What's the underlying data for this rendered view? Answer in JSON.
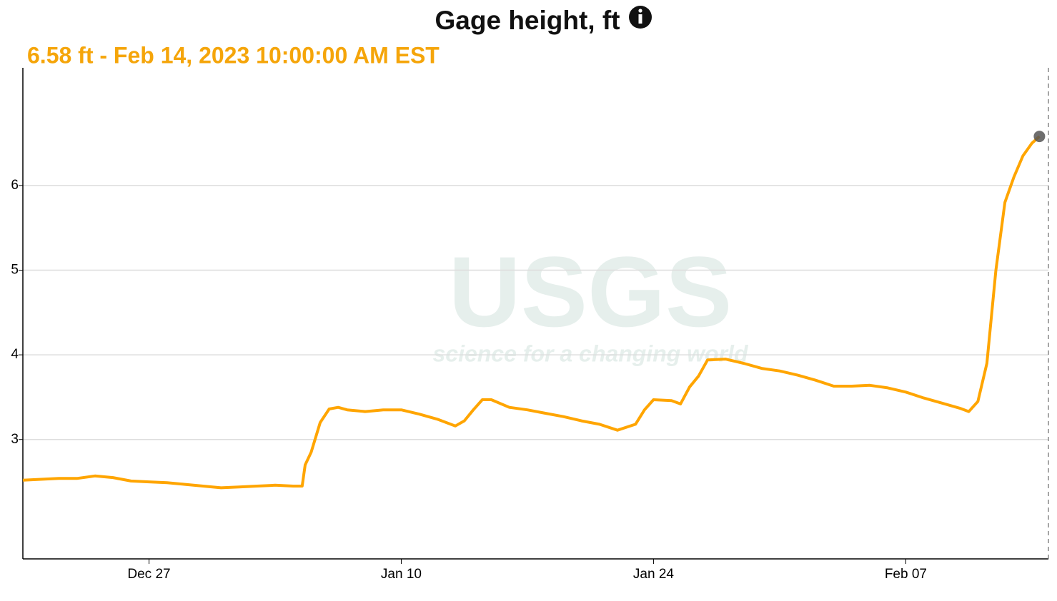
{
  "chart_data": {
    "type": "line",
    "title": "Gage height, ft",
    "subtitle": "6.58 ft - Feb 14, 2023 10:00:00 AM EST",
    "watermark": {
      "logo": "USGS",
      "tagline": "science for a changing world"
    },
    "x": [
      "2022-12-20T00:00",
      "2022-12-21T00:00",
      "2022-12-22T00:00",
      "2022-12-23T00:00",
      "2022-12-24T00:00",
      "2022-12-25T00:00",
      "2022-12-26T00:00",
      "2022-12-27T00:00",
      "2022-12-28T00:00",
      "2022-12-29T00:00",
      "2022-12-30T00:00",
      "2022-12-31T00:00",
      "2023-01-01T00:00",
      "2023-01-02T00:00",
      "2023-01-03T00:00",
      "2023-01-04T00:00",
      "2023-01-04T12:00",
      "2023-01-04T16:00",
      "2023-01-05T00:00",
      "2023-01-05T12:00",
      "2023-01-06T00:00",
      "2023-01-06T12:00",
      "2023-01-07T00:00",
      "2023-01-08T00:00",
      "2023-01-09T00:00",
      "2023-01-10T00:00",
      "2023-01-11T00:00",
      "2023-01-12T00:00",
      "2023-01-13T00:00",
      "2023-01-13T12:00",
      "2023-01-14T00:00",
      "2023-01-14T12:00",
      "2023-01-15T00:00",
      "2023-01-16T00:00",
      "2023-01-17T00:00",
      "2023-01-18T00:00",
      "2023-01-19T00:00",
      "2023-01-20T00:00",
      "2023-01-21T00:00",
      "2023-01-22T00:00",
      "2023-01-23T00:00",
      "2023-01-23T12:00",
      "2023-01-24T00:00",
      "2023-01-25T00:00",
      "2023-01-25T12:00",
      "2023-01-26T00:00",
      "2023-01-26T12:00",
      "2023-01-27T00:00",
      "2023-01-28T00:00",
      "2023-01-29T00:00",
      "2023-01-30T00:00",
      "2023-01-31T00:00",
      "2023-02-01T00:00",
      "2023-02-02T00:00",
      "2023-02-03T00:00",
      "2023-02-04T00:00",
      "2023-02-05T00:00",
      "2023-02-06T00:00",
      "2023-02-07T00:00",
      "2023-02-08T00:00",
      "2023-02-09T00:00",
      "2023-02-10T00:00",
      "2023-02-10T12:00",
      "2023-02-11T00:00",
      "2023-02-11T12:00",
      "2023-02-12T00:00",
      "2023-02-12T12:00",
      "2023-02-13T00:00",
      "2023-02-13T12:00",
      "2023-02-14T00:00",
      "2023-02-14T10:00"
    ],
    "series": [
      {
        "name": "Gage height",
        "color": "#ffa500",
        "values": [
          2.52,
          2.53,
          2.54,
          2.54,
          2.57,
          2.55,
          2.51,
          2.5,
          2.49,
          2.47,
          2.45,
          2.43,
          2.44,
          2.45,
          2.46,
          2.45,
          2.45,
          2.7,
          2.85,
          3.2,
          3.36,
          3.38,
          3.35,
          3.33,
          3.35,
          3.35,
          3.3,
          3.24,
          3.16,
          3.22,
          3.35,
          3.47,
          3.47,
          3.38,
          3.35,
          3.31,
          3.27,
          3.22,
          3.18,
          3.11,
          3.18,
          3.35,
          3.47,
          3.46,
          3.42,
          3.62,
          3.75,
          3.94,
          3.95,
          3.9,
          3.84,
          3.81,
          3.76,
          3.7,
          3.63,
          3.63,
          3.64,
          3.61,
          3.56,
          3.49,
          3.43,
          3.37,
          3.33,
          3.45,
          3.9,
          5.0,
          5.8,
          6.1,
          6.35,
          6.5,
          6.58
        ]
      }
    ],
    "xlim": [
      "2022-12-20T00:00",
      "2023-02-14T22:00"
    ],
    "xticks": [
      {
        "value": "2022-12-27T00:00",
        "label": "Dec 27"
      },
      {
        "value": "2023-01-10T00:00",
        "label": "Jan 10"
      },
      {
        "value": "2023-01-24T00:00",
        "label": "Jan 24"
      },
      {
        "value": "2023-02-07T00:00",
        "label": "Feb 07"
      }
    ],
    "ylim": [
      1.59,
      7.39
    ],
    "yticks": [
      3,
      4,
      5,
      6
    ],
    "grid": true
  }
}
